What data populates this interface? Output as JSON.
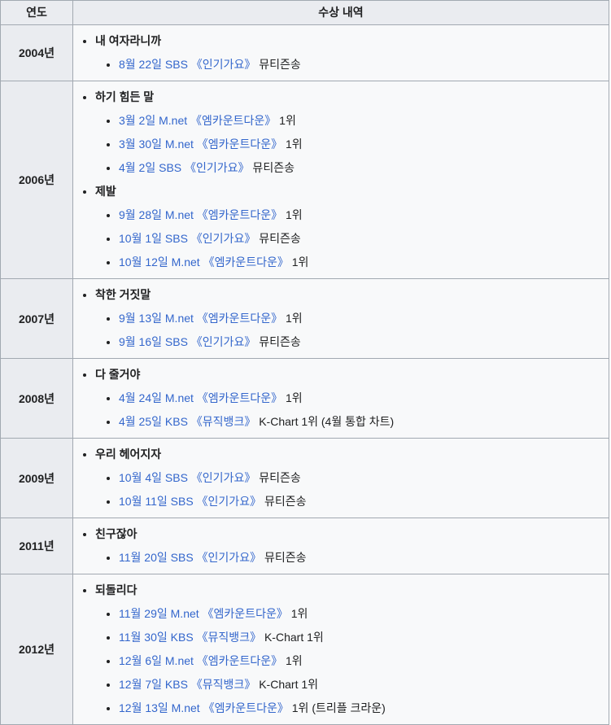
{
  "header": {
    "year_label": "연도",
    "awards_label": "수상 내역"
  },
  "colors": {
    "link": "#3366cc",
    "header_bg": "#eaecf0",
    "cell_bg": "#f8f9fa",
    "border": "#a2a9b1",
    "text": "#202122"
  },
  "rows": [
    {
      "year": "2004년",
      "songs": [
        {
          "title": "내 여자라니까",
          "awards": [
            {
              "link": "8월 22일 SBS 《인기가요》",
              "plain": "뮤티즌송"
            }
          ]
        }
      ]
    },
    {
      "year": "2006년",
      "songs": [
        {
          "title": "하기 힘든 말",
          "awards": [
            {
              "link": "3월 2일 M.net 《엠카운트다운》",
              "plain": "1위"
            },
            {
              "link": "3월 30일 M.net 《엠카운트다운》",
              "plain": "1위"
            },
            {
              "link": "4월 2일 SBS 《인기가요》",
              "plain": "뮤티즌송"
            }
          ]
        },
        {
          "title": "제발",
          "awards": [
            {
              "link": "9월 28일 M.net 《엠카운트다운》",
              "plain": "1위"
            },
            {
              "link": "10월 1일 SBS 《인기가요》",
              "plain": "뮤티즌송"
            },
            {
              "link": "10월 12일 M.net 《엠카운트다운》",
              "plain": "1위"
            }
          ]
        }
      ]
    },
    {
      "year": "2007년",
      "songs": [
        {
          "title": "착한 거짓말",
          "awards": [
            {
              "link": "9월 13일 M.net 《엠카운트다운》",
              "plain": "1위"
            },
            {
              "link": "9월 16일 SBS 《인기가요》",
              "plain": "뮤티즌송"
            }
          ]
        }
      ]
    },
    {
      "year": "2008년",
      "songs": [
        {
          "title": "다 줄거야",
          "awards": [
            {
              "link": "4월 24일 M.net 《엠카운트다운》",
              "plain": "1위"
            },
            {
              "link": "4월 25일 KBS 《뮤직뱅크》",
              "plain": "K-Chart 1위 (4월 통합 차트)"
            }
          ]
        }
      ]
    },
    {
      "year": "2009년",
      "songs": [
        {
          "title": "우리 헤어지자",
          "awards": [
            {
              "link": "10월 4일 SBS 《인기가요》",
              "plain": "뮤티즌송"
            },
            {
              "link": "10월 11일 SBS 《인기가요》",
              "plain": "뮤티즌송"
            }
          ]
        }
      ]
    },
    {
      "year": "2011년",
      "songs": [
        {
          "title": "친구잖아",
          "awards": [
            {
              "link": "11월 20일 SBS 《인기가요》",
              "plain": "뮤티즌송"
            }
          ]
        }
      ]
    },
    {
      "year": "2012년",
      "songs": [
        {
          "title": "되돌리다",
          "awards": [
            {
              "link": "11월 29일 M.net 《엠카운트다운》",
              "plain": "1위"
            },
            {
              "link": "11월 30일 KBS 《뮤직뱅크》",
              "plain": "K-Chart 1위"
            },
            {
              "link": "12월 6일 M.net 《엠카운트다운》",
              "plain": "1위"
            },
            {
              "link": "12월 7일 KBS 《뮤직뱅크》",
              "plain": "K-Chart 1위"
            },
            {
              "link": "12월 13일 M.net 《엠카운트다운》",
              "plain": "1위 (트리플 크라운)"
            }
          ]
        }
      ]
    }
  ]
}
